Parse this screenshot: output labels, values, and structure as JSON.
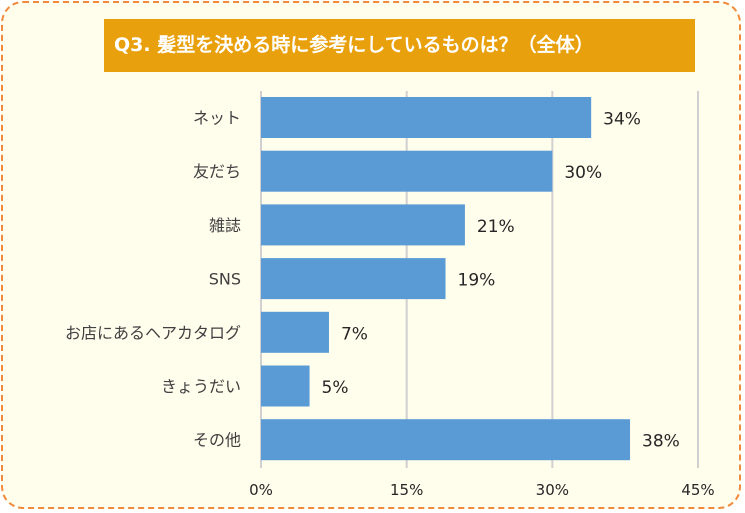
{
  "chart_data": {
    "type": "bar",
    "orientation": "horizontal",
    "title": "Q3. 髪型を決める時に参考にしているものは？（全体）",
    "categories": [
      "ネット",
      "友だち",
      "雑誌",
      "SNS",
      "お店にあるヘアカタログ",
      "きょうだい",
      "その他"
    ],
    "values": [
      34,
      30,
      21,
      19,
      7,
      5,
      38
    ],
    "data_labels": [
      "34%",
      "30%",
      "21%",
      "19%",
      "7%",
      "5%",
      "38%"
    ],
    "xlim": [
      0,
      45
    ],
    "xticks": [
      0,
      15,
      30,
      45
    ],
    "xtick_labels": [
      "0%",
      "15%",
      "30%",
      "45%"
    ],
    "grid": true,
    "bar_color": "#5b9bd5",
    "title_bg": "#e8a00c"
  }
}
